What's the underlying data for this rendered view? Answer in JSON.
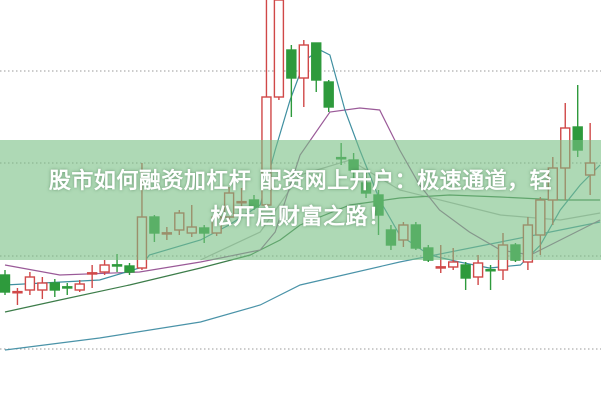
{
  "chart_data": {
    "type": "candlestick",
    "title": "",
    "xlabel": "",
    "ylabel": "",
    "grid": "horizontal dotted",
    "colors": {
      "up": "#d04848",
      "down": "#2e9a3c",
      "ma5": "#3f8fa0",
      "ma10": "#9a5a98",
      "ma20": "#3d7d4a",
      "ma30": "#b5b5b5",
      "ma60": "#4a93a8"
    },
    "ylim": [
      0,
      100
    ],
    "gridlines": [
      82.25,
      59.25,
      36,
      12.75
    ],
    "candles": [
      [
        31.25,
        32.5,
        26.25,
        27
      ],
      [
        27,
        28,
        23.75,
        27.1
      ],
      [
        27.5,
        32,
        26.25,
        30.75
      ],
      [
        27.5,
        30.75,
        25.25,
        29.25
      ],
      [
        29.25,
        30.25,
        25.75,
        27.5
      ],
      [
        28.3,
        29.25,
        26.25,
        28.2
      ],
      [
        27.5,
        30,
        27,
        29
      ],
      [
        31.7,
        33.75,
        28,
        31.8
      ],
      [
        32,
        35,
        31.25,
        33.75
      ],
      [
        33.8,
        36.5,
        32,
        33.7
      ],
      [
        33.5,
        34.25,
        31.25,
        32
      ],
      [
        33,
        59.25,
        32.5,
        45.75
      ],
      [
        45.75,
        46.25,
        39.5,
        41.75
      ],
      [
        41.7,
        43.25,
        40,
        41.8
      ],
      [
        42.5,
        47.5,
        41.25,
        46.75
      ],
      [
        41.75,
        48.75,
        40.75,
        43.25
      ],
      [
        43,
        43.75,
        39.25,
        41.75
      ],
      [
        41.75,
        46.5,
        41,
        45.75
      ],
      [
        45.75,
        53.25,
        44.5,
        51.75
      ],
      [
        49.5,
        53,
        48.25,
        49.6
      ],
      [
        50,
        51.25,
        47.5,
        48.25
      ],
      [
        48.75,
        100,
        48.25,
        75.75
      ],
      [
        75.75,
        100,
        75,
        100
      ],
      [
        87.5,
        88.75,
        70.75,
        80.5
      ],
      [
        80.5,
        90,
        73.25,
        88.75
      ],
      [
        89.25,
        89.25,
        77,
        80
      ],
      [
        79.5,
        80,
        72,
        73.25
      ],
      [
        60.6,
        64.25,
        58.75,
        60.5
      ],
      [
        60,
        61.75,
        55,
        57.5
      ],
      [
        54.25,
        56.75,
        50.5,
        51.75
      ],
      [
        51.25,
        52.5,
        41.25,
        46.25
      ],
      [
        42.5,
        43.75,
        37.5,
        38.75
      ],
      [
        40,
        44.5,
        38.25,
        43.75
      ],
      [
        43.75,
        44.5,
        37.5,
        38
      ],
      [
        38,
        38.75,
        34.5,
        35
      ],
      [
        33.2,
        38.75,
        31.75,
        33.3
      ],
      [
        33.25,
        38,
        32.5,
        34.5
      ],
      [
        33.75,
        34.5,
        27.5,
        30.5
      ],
      [
        30.75,
        36.25,
        28.75,
        34.25
      ],
      [
        32.6,
        33.75,
        27.5,
        32.5
      ],
      [
        32.5,
        41.75,
        30,
        38.75
      ],
      [
        38.75,
        39.25,
        34.5,
        35
      ],
      [
        34.5,
        45.75,
        32.5,
        43.75
      ],
      [
        41.25,
        50.75,
        36.25,
        50
      ],
      [
        50,
        60.75,
        43.75,
        58
      ],
      [
        58,
        74.25,
        50,
        68
      ],
      [
        68.25,
        78.75,
        60.75,
        62.5
      ],
      [
        56.25,
        69.25,
        51.25,
        59.25
      ]
    ],
    "moving_averages": [
      {
        "key": "ma60",
        "points": [
          [
            0,
            12.5
          ],
          [
            7.6,
            15.5
          ],
          [
            15.7,
            19.5
          ],
          [
            20.5,
            23.75
          ],
          [
            23.7,
            28.75
          ],
          [
            31.7,
            34.5
          ],
          [
            39.8,
            39.5
          ],
          [
            44.6,
            42.5
          ],
          [
            47.8,
            44.5
          ]
        ]
      },
      {
        "key": "ma30",
        "points": [
          [
            15.7,
            35
          ],
          [
            20.5,
            42
          ],
          [
            23.7,
            56.25
          ],
          [
            27.7,
            60
          ],
          [
            31.7,
            52.5
          ],
          [
            39.8,
            46.25
          ],
          [
            44.6,
            45
          ],
          [
            47.8,
            46.75
          ]
        ]
      },
      {
        "key": "ma20",
        "points": [
          [
            0,
            22
          ],
          [
            4.4,
            25
          ],
          [
            10,
            28.75
          ],
          [
            15.7,
            33
          ],
          [
            19.7,
            36.25
          ],
          [
            22.1,
            40
          ],
          [
            23.7,
            43.75
          ],
          [
            27.7,
            48.75
          ],
          [
            31.7,
            50.5
          ],
          [
            35.7,
            51.25
          ],
          [
            39.8,
            50.75
          ],
          [
            44.6,
            50
          ],
          [
            47.8,
            50
          ]
        ]
      },
      {
        "key": "ma10",
        "points": [
          [
            0,
            33.75
          ],
          [
            4.4,
            31.25
          ],
          [
            10.8,
            32
          ],
          [
            15.7,
            34.5
          ],
          [
            20.5,
            37.5
          ],
          [
            21.7,
            42
          ],
          [
            23.7,
            61.25
          ],
          [
            26.1,
            72
          ],
          [
            28.5,
            73
          ],
          [
            30.1,
            72.5
          ],
          [
            31.7,
            62.5
          ],
          [
            33.3,
            53.75
          ],
          [
            34.9,
            47.5
          ],
          [
            37.3,
            42
          ],
          [
            39.8,
            37.5
          ],
          [
            42.2,
            36.25
          ],
          [
            44.6,
            40
          ],
          [
            47.8,
            45
          ]
        ]
      },
      {
        "key": "ma5",
        "points": [
          [
            0,
            28.75
          ],
          [
            7.6,
            30
          ],
          [
            10.8,
            33
          ],
          [
            11.6,
            36.25
          ],
          [
            15.7,
            40
          ],
          [
            18,
            43.75
          ],
          [
            20.5,
            48.75
          ],
          [
            21.7,
            62.5
          ],
          [
            22.9,
            75
          ],
          [
            24.1,
            85
          ],
          [
            25.3,
            87.5
          ],
          [
            26.1,
            86.25
          ],
          [
            27.3,
            72.5
          ],
          [
            28.5,
            62.5
          ],
          [
            30.1,
            50
          ],
          [
            31.7,
            41.25
          ],
          [
            34.1,
            36.25
          ],
          [
            36.5,
            34.5
          ],
          [
            38.9,
            33
          ],
          [
            41.4,
            33.75
          ],
          [
            43,
            38.75
          ],
          [
            44.6,
            47.5
          ],
          [
            46.2,
            53.75
          ],
          [
            47.8,
            58.75
          ]
        ]
      }
    ]
  },
  "overlay": {
    "line1": "股市如何融资加杠杆 配资网上开户：极速通道，轻",
    "line2": "松开启财富之路！"
  }
}
